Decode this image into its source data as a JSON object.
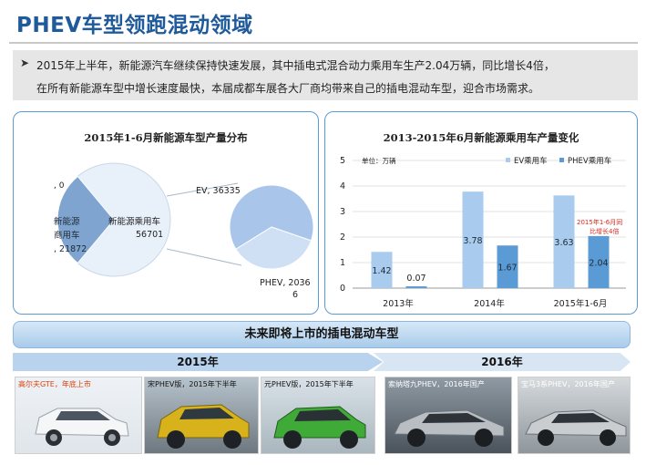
{
  "title": "PHEV车型领跑混动领域",
  "summary": {
    "bullet": "➤",
    "line1": "2015年上半年，新能源汽车继续保持快速发展，其中插电式混合动力乘用车生产2.04万辆，同比增长4倍，",
    "line2": "在所有新能源车型中增长速度最快，本届成都车展各大厂商均带来自己的插电混动车型，迎合市场需求。"
  },
  "colors": {
    "accent": "#5b9bd5",
    "ev_bar": "#a9cbee",
    "phev_bar": "#5b9bd5",
    "title": "#1f5a9a"
  },
  "chart_data": [
    {
      "type": "pie",
      "title": "2015年1-6月新能源车型产量分布",
      "labels": [
        ", 0",
        "新能源商用车, 21872",
        "新能源乘用车 56701"
      ],
      "slices": [
        {
          "name": "",
          "value": 0
        },
        {
          "name": "新能源商用车",
          "value": 21872
        },
        {
          "name": "新能源乘用车",
          "value": 56701
        }
      ],
      "breakdown": {
        "of": "新能源乘用车",
        "slices": [
          {
            "name": "EV",
            "value": 36335,
            "label": "EV, 36335"
          },
          {
            "name": "PHEV",
            "value": 20366,
            "label": "PHEV, 20366"
          }
        ]
      }
    },
    {
      "type": "bar",
      "title": "2013-2015年6月新能源乘用车产量变化",
      "unit_label": "单位：万辆",
      "categories": [
        "2013年",
        "2014年",
        "2015年1-6月"
      ],
      "series": [
        {
          "name": "EV乘用车",
          "values": [
            1.42,
            3.78,
            3.63
          ]
        },
        {
          "name": "PHEV乘用车",
          "values": [
            0.07,
            1.67,
            2.04
          ]
        }
      ],
      "ylim": [
        0,
        5
      ],
      "yticks": [
        "0",
        "1",
        "2",
        "3",
        "4",
        "5"
      ],
      "annotation": "2015年1-6月同比增长4倍",
      "legend": "top-right",
      "grid": true
    }
  ],
  "band": {
    "label": "未来即将上市的插电混动车型"
  },
  "years": {
    "y2015": "2015年",
    "y2016": "2016年"
  },
  "cars": [
    {
      "caption": "高尔夫GTE，年底上市"
    },
    {
      "caption": "宋PHEV版，2015年下半年"
    },
    {
      "caption": "元PHEV版，2015年下半年"
    },
    {
      "caption": "索纳塔九PHEV，2016年国产"
    },
    {
      "caption": "宝马3系PHEV，2016年国产"
    }
  ]
}
